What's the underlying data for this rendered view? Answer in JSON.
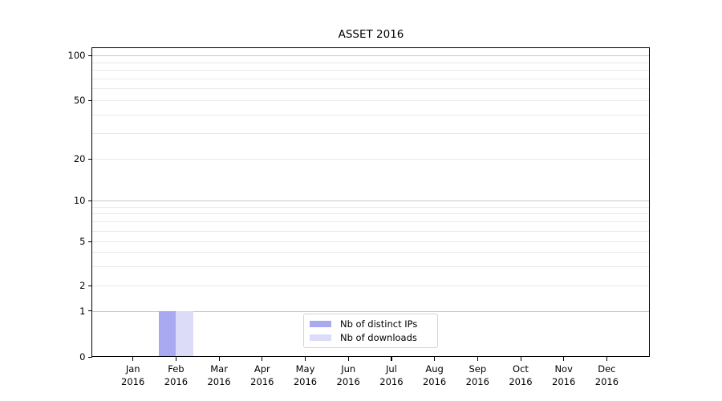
{
  "chart_data": {
    "type": "bar",
    "title": "ASSET 2016",
    "x": {
      "categories": [
        "Jan",
        "Feb",
        "Mar",
        "Apr",
        "May",
        "Jun",
        "Jul",
        "Aug",
        "Sep",
        "Oct",
        "Nov",
        "Dec"
      ],
      "year_label": "2016"
    },
    "series": [
      {
        "name": "Nb of distinct IPs",
        "color": "#a9a9f1",
        "values": [
          0,
          1,
          0,
          0,
          0,
          0,
          0,
          0,
          0,
          0,
          0,
          0
        ]
      },
      {
        "name": "Nb of downloads",
        "color": "#dcdcf8",
        "values": [
          0,
          1,
          0,
          0,
          0,
          0,
          0,
          0,
          0,
          0,
          0,
          0
        ]
      }
    ],
    "y": {
      "major_ticks": [
        0,
        1,
        2,
        5,
        10,
        20,
        50,
        100
      ],
      "minor_gridline_values": [
        3,
        4,
        6,
        7,
        8,
        9,
        30,
        40,
        60,
        70,
        80,
        90
      ],
      "scale": "quasi-log (linear 0-1, log above)",
      "ylim": [
        0,
        115
      ]
    },
    "grid": {
      "horizontal": true,
      "vertical": false
    },
    "legend": {
      "position": "lower-center-inside"
    },
    "colors": {
      "decade_gridline": "#c8c8c8",
      "minor_gridline": "#e9e9e9",
      "spine": "#000000",
      "background": "#ffffff"
    }
  }
}
